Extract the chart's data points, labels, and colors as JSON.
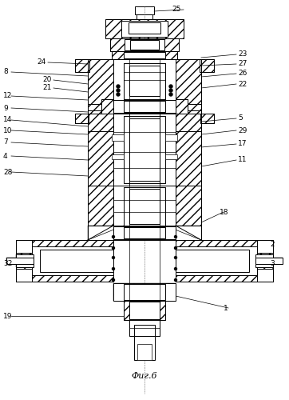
{
  "caption": "Фиг.6",
  "bg_color": "#ffffff",
  "figsize": [
    3.62,
    5.0
  ],
  "dpi": 100
}
